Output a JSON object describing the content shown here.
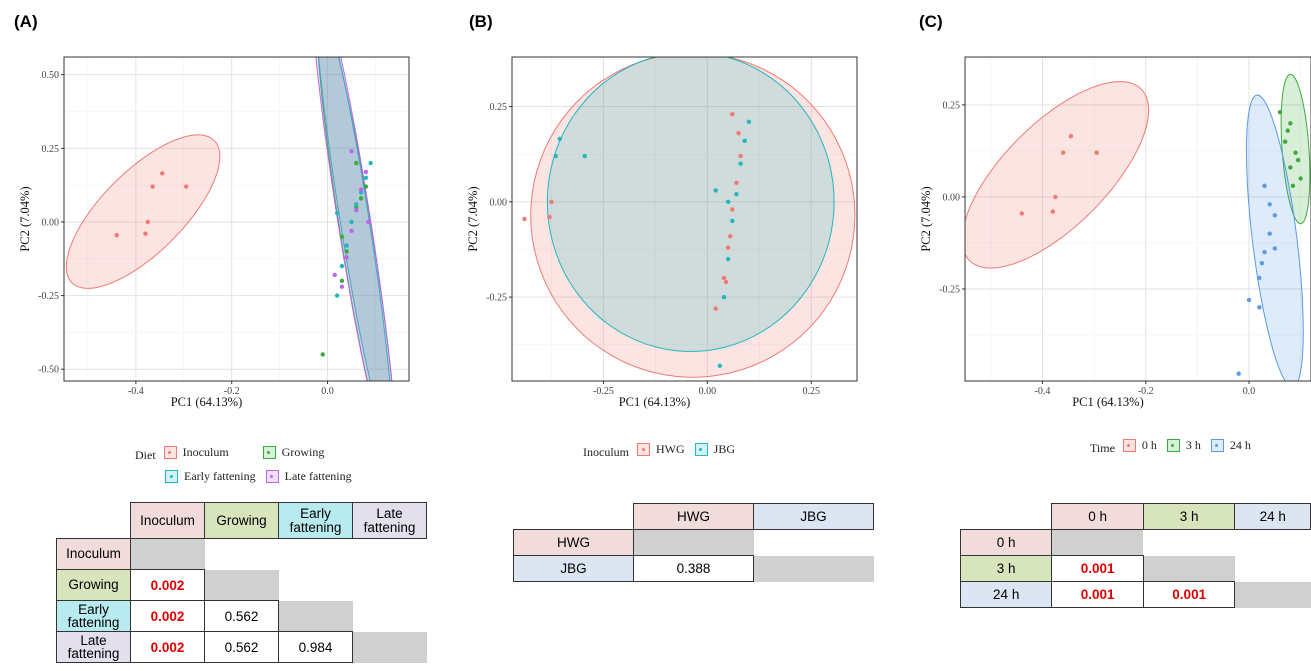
{
  "colors": {
    "red": "#f07a73",
    "green": "#3daa3d",
    "cyan": "#23b7be",
    "purple": "#bb66ee",
    "blue": "#5a9be6",
    "header_red": "#f2dcdb",
    "header_green": "#d8e4bc",
    "header_cyan": "#b7ebf0",
    "header_purple": "#e4dfec",
    "header_blue": "#dce6f2"
  },
  "panels": [
    {
      "letter": "(A)",
      "chart_data": {
        "type": "scatter",
        "xlabel": "PC1 (64.13%)",
        "ylabel": "PC2 (7.04%)",
        "xlim": [
          -0.55,
          0.17
        ],
        "ylim": [
          -0.54,
          0.56
        ],
        "xticks": [
          -0.4,
          -0.2,
          0.0
        ],
        "xtick_labels": [
          "-0.4",
          "-0.2",
          "0.0"
        ],
        "yticks": [
          -0.5,
          -0.25,
          0.0,
          0.25,
          0.5
        ],
        "ytick_labels": [
          "-0.50",
          "-0.25",
          "0.00",
          "0.25",
          "0.50"
        ],
        "grid": true,
        "legend": {
          "title": "Diet",
          "position": "bottom",
          "entries": [
            {
              "name": "Inoculum",
              "color": "#f07a73"
            },
            {
              "name": "Growing",
              "color": "#3daa3d"
            },
            {
              "name": "Early fattening",
              "color": "#23b7be"
            },
            {
              "name": "Late fattening",
              "color": "#bb66ee"
            }
          ]
        },
        "series": [
          {
            "name": "Inoculum",
            "color": "#f07a73",
            "ellipse": {
              "cx": -0.385,
              "cy": 0.035,
              "rx": 0.21,
              "ry": 0.085,
              "angle": 45
            },
            "points": [
              [
                -0.44,
                -0.045
              ],
              [
                -0.38,
                -0.04
              ],
              [
                -0.375,
                0.0
              ],
              [
                -0.365,
                0.12
              ],
              [
                -0.345,
                0.165
              ],
              [
                -0.295,
                0.12
              ]
            ]
          },
          {
            "name": "Growing",
            "color": "#3daa3d",
            "ellipse": {
              "cx": 0.06,
              "cy": -0.04,
              "rx": 0.033,
              "ry": 0.48,
              "angle": 9
            },
            "points": [
              [
                -0.01,
                -0.45
              ],
              [
                0.03,
                -0.2
              ],
              [
                0.04,
                -0.1
              ],
              [
                0.05,
                0.0
              ],
              [
                0.06,
                0.05
              ],
              [
                0.07,
                0.08
              ],
              [
                0.08,
                0.12
              ],
              [
                0.03,
                -0.05
              ],
              [
                0.06,
                0.2
              ]
            ]
          },
          {
            "name": "Early fattening",
            "color": "#23b7be",
            "ellipse": {
              "cx": 0.055,
              "cy": 0.02,
              "rx": 0.03,
              "ry": 0.47,
              "angle": 9
            },
            "points": [
              [
                0.02,
                -0.25
              ],
              [
                0.03,
                -0.15
              ],
              [
                0.04,
                -0.08
              ],
              [
                0.05,
                0.0
              ],
              [
                0.06,
                0.06
              ],
              [
                0.07,
                0.1
              ],
              [
                0.08,
                0.15
              ],
              [
                0.02,
                0.03
              ],
              [
                0.09,
                0.2
              ]
            ]
          },
          {
            "name": "Late fattening",
            "color": "#bb66ee",
            "ellipse": {
              "cx": 0.055,
              "cy": 0.01,
              "rx": 0.034,
              "ry": 0.52,
              "angle": 9
            },
            "points": [
              [
                0.03,
                -0.22
              ],
              [
                0.04,
                -0.12
              ],
              [
                0.05,
                -0.03
              ],
              [
                0.06,
                0.04
              ],
              [
                0.07,
                0.11
              ],
              [
                0.08,
                0.17
              ],
              [
                0.05,
                0.24
              ],
              [
                0.015,
                -0.18
              ],
              [
                0.085,
                0.0
              ]
            ]
          }
        ]
      },
      "table": {
        "col_headers": [
          "Inoculum",
          "Growing",
          "Early fattening",
          "Late fattening"
        ],
        "row_headers": [
          "Inoculum",
          "Growing",
          "Early fattening",
          "Late fattening"
        ],
        "rows": [
          [
            "",
            "",
            "",
            ""
          ],
          [
            "0.002",
            "",
            "",
            ""
          ],
          [
            "0.002",
            "0.562",
            "",
            ""
          ],
          [
            "0.002",
            "0.562",
            "0.984",
            ""
          ]
        ]
      }
    },
    {
      "letter": "(B)",
      "chart_data": {
        "type": "scatter",
        "xlabel": "PC1 (64.13%)",
        "ylabel": "PC2 (7.04%)",
        "xlim": [
          -0.47,
          0.36
        ],
        "ylim": [
          -0.47,
          0.38
        ],
        "xticks": [
          -0.25,
          0.0,
          0.25
        ],
        "xtick_labels": [
          "-0.25",
          "0.00",
          "0.25"
        ],
        "yticks": [
          -0.25,
          0.0,
          0.25
        ],
        "ytick_labels": [
          "-0.25",
          "0.00",
          "0.25"
        ],
        "grid": true,
        "legend": {
          "title": "Inoculum",
          "position": "bottom",
          "entries": [
            {
              "name": "HWG",
              "color": "#f07a73"
            },
            {
              "name": "JBG",
              "color": "#23b7be"
            }
          ]
        },
        "series": [
          {
            "name": "HWG",
            "color": "#f07a73",
            "ellipse": {
              "cx": -0.035,
              "cy": -0.035,
              "rx": 0.39,
              "ry": 0.39,
              "angle": 0
            },
            "points": [
              [
                -0.44,
                -0.045
              ],
              [
                -0.38,
                -0.04
              ],
              [
                -0.375,
                0.0
              ],
              [
                0.02,
                -0.28
              ],
              [
                0.04,
                -0.2
              ],
              [
                0.05,
                -0.12
              ],
              [
                0.06,
                -0.02
              ],
              [
                0.07,
                0.05
              ],
              [
                0.08,
                0.12
              ],
              [
                0.06,
                0.23
              ],
              [
                0.045,
                -0.21
              ],
              [
                0.055,
                -0.09
              ],
              [
                0.075,
                0.18
              ]
            ]
          },
          {
            "name": "JBG",
            "color": "#23b7be",
            "ellipse": {
              "cx": -0.04,
              "cy": 0.0,
              "rx": 0.345,
              "ry": 0.36,
              "angle": 0
            },
            "points": [
              [
                -0.355,
                0.165
              ],
              [
                -0.365,
                0.12
              ],
              [
                -0.295,
                0.12
              ],
              [
                0.03,
                -0.43
              ],
              [
                0.04,
                -0.25
              ],
              [
                0.05,
                -0.15
              ],
              [
                0.06,
                -0.05
              ],
              [
                0.02,
                0.03
              ],
              [
                0.07,
                0.02
              ],
              [
                0.08,
                0.1
              ],
              [
                0.09,
                0.16
              ],
              [
                0.1,
                0.21
              ],
              [
                0.05,
                0.0
              ]
            ]
          }
        ]
      },
      "table": {
        "col_headers": [
          "HWG",
          "JBG"
        ],
        "row_headers": [
          "HWG",
          "JBG"
        ],
        "rows": [
          [
            "",
            ""
          ],
          [
            "0.388",
            ""
          ]
        ]
      }
    },
    {
      "letter": "(C)",
      "chart_data": {
        "type": "scatter",
        "xlabel": "PC1 (64.13%)",
        "ylabel": "PC2 (7.04%)",
        "xlim": [
          -0.55,
          0.12
        ],
        "ylim": [
          -0.5,
          0.38
        ],
        "xticks": [
          -0.4,
          -0.2,
          0.0
        ],
        "xtick_labels": [
          "-0.4",
          "-0.2",
          "0.0"
        ],
        "yticks": [
          -0.25,
          0.0,
          0.25
        ],
        "ytick_labels": [
          "-0.25",
          "0.00",
          "0.25"
        ],
        "grid": true,
        "legend": {
          "title": "Time",
          "position": "bottom",
          "entries": [
            {
              "name": "0 h",
              "color": "#f07a73"
            },
            {
              "name": "3 h",
              "color": "#3daa3d"
            },
            {
              "name": "24 h",
              "color": "#5a9be6"
            }
          ]
        },
        "series": [
          {
            "name": "0 h",
            "color": "#f07a73",
            "ellipse": {
              "cx": -0.375,
              "cy": 0.06,
              "rx": 0.235,
              "ry": 0.1,
              "angle": 45
            },
            "points": [
              [
                -0.44,
                -0.045
              ],
              [
                -0.38,
                -0.04
              ],
              [
                -0.375,
                0.0
              ],
              [
                -0.36,
                0.12
              ],
              [
                -0.345,
                0.165
              ],
              [
                -0.295,
                0.12
              ]
            ]
          },
          {
            "name": "3 h",
            "color": "#3daa3d",
            "ellipse": {
              "cx": 0.09,
              "cy": 0.13,
              "rx": 0.026,
              "ry": 0.145,
              "angle": 4
            },
            "points": [
              [
                0.06,
                0.23
              ],
              [
                0.08,
                0.2
              ],
              [
                0.07,
                0.15
              ],
              [
                0.09,
                0.12
              ],
              [
                0.08,
                0.08
              ],
              [
                0.1,
                0.05
              ],
              [
                0.075,
                0.18
              ],
              [
                0.095,
                0.1
              ],
              [
                0.085,
                0.03
              ]
            ]
          },
          {
            "name": "24 h",
            "color": "#5a9be6",
            "ellipse": {
              "cx": 0.05,
              "cy": -0.12,
              "rx": 0.043,
              "ry": 0.285,
              "angle": 7
            },
            "points": [
              [
                -0.02,
                -0.48
              ],
              [
                0.0,
                -0.28
              ],
              [
                0.02,
                -0.22
              ],
              [
                0.03,
                -0.15
              ],
              [
                0.04,
                -0.1
              ],
              [
                0.05,
                -0.05
              ],
              [
                0.04,
                -0.02
              ],
              [
                0.03,
                0.03
              ],
              [
                0.02,
                -0.3
              ],
              [
                0.05,
                -0.14
              ],
              [
                0.025,
                -0.18
              ]
            ]
          }
        ]
      },
      "table": {
        "col_headers": [
          "0 h",
          "3 h",
          "24 h"
        ],
        "row_headers": [
          "0 h",
          "3 h",
          "24 h"
        ],
        "rows": [
          [
            "",
            "",
            ""
          ],
          [
            "0.001",
            "",
            ""
          ],
          [
            "0.001",
            "0.001",
            ""
          ]
        ]
      }
    }
  ]
}
